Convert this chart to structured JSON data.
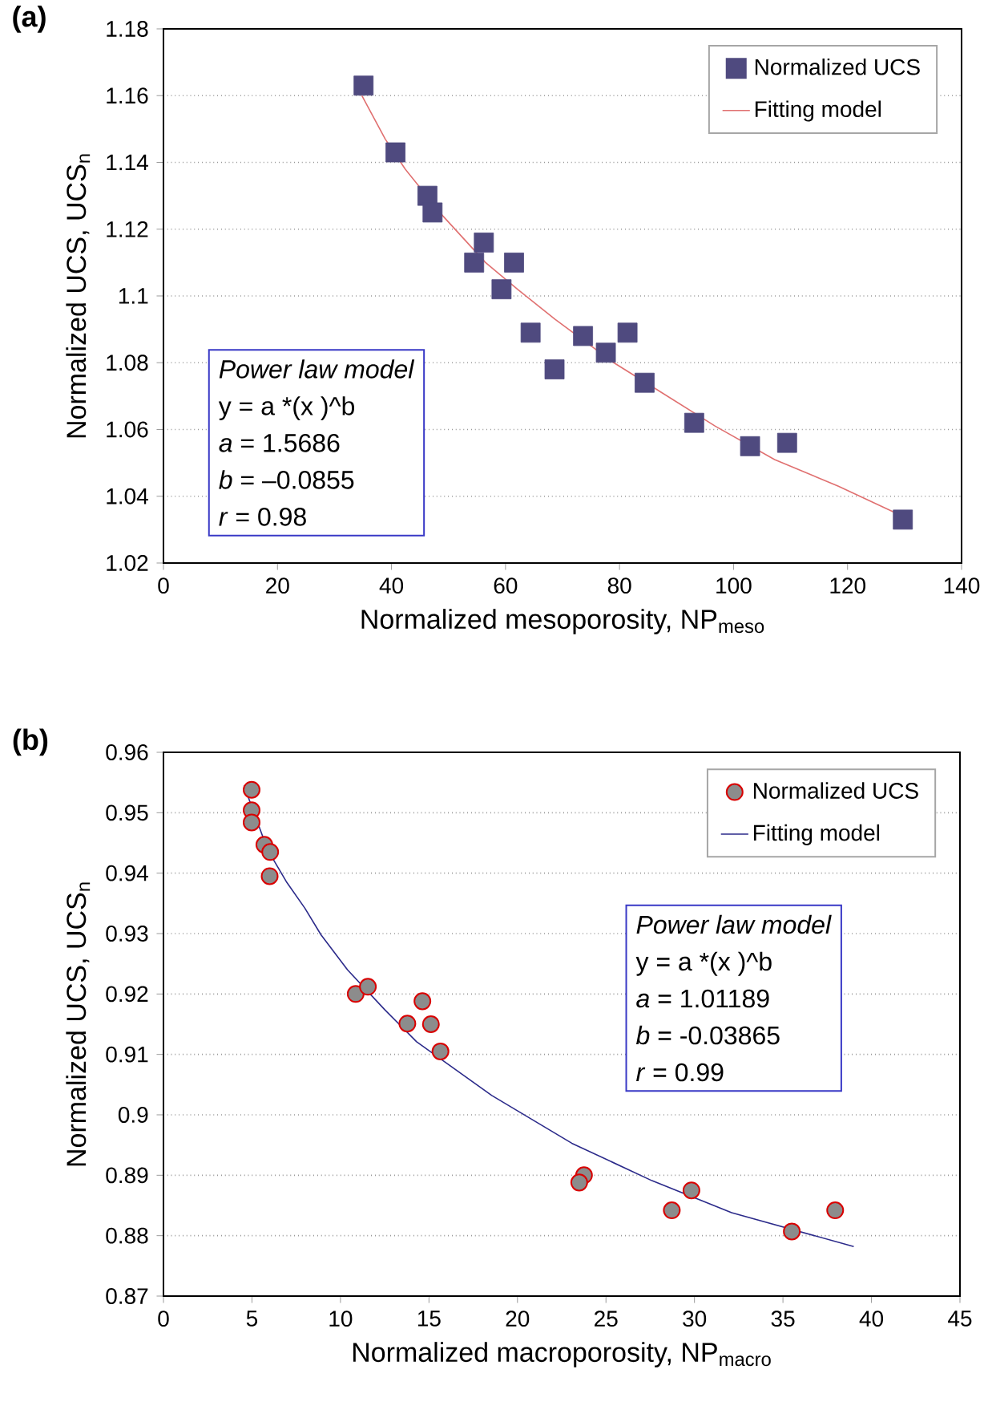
{
  "chart_data": [
    {
      "type": "scatter",
      "title": "(a)",
      "xlabel": "Normalized mesoporosity, NP$_{meso}$",
      "ylabel": "Normalized UCS, UCS$_{n}$",
      "xlim": [
        0,
        140
      ],
      "xticks": [
        0,
        20,
        40,
        60,
        80,
        100,
        120,
        140
      ],
      "ylim": [
        1.02,
        1.18
      ],
      "yticks": [
        1.02,
        1.04,
        1.06,
        1.08,
        1.1,
        1.12,
        1.14,
        1.16,
        1.18
      ],
      "grid": "y",
      "legend": "top right",
      "annotations": [
        "*Power law model*",
        "y = a *(x )^b",
        "*a* = 1.5686",
        "*b* = –0.0855",
        "*r* = 0.98"
      ],
      "series": [
        {
          "name": "Normalized UCS",
          "marker": "square",
          "color": "#4f4a7f",
          "x": [
            35.1,
            40.7,
            46.3,
            47.2,
            56.2,
            54.5,
            61.5,
            59.3,
            64.4,
            68.6,
            73.6,
            77.6,
            81.4,
            84.4,
            93.1,
            102.9,
            109.4,
            129.7
          ],
          "values": [
            1.163,
            1.143,
            1.13,
            1.125,
            1.116,
            1.11,
            1.11,
            1.102,
            1.089,
            1.078,
            1.088,
            1.083,
            1.089,
            1.074,
            1.062,
            1.055,
            1.056,
            1.033
          ]
        },
        {
          "name": "Fitting model",
          "type": "line",
          "marker": "none",
          "color": "#e07070",
          "x": [
            34.8,
            38.9,
            42.4,
            49.0,
            56.5,
            62.1,
            68.7,
            79.0,
            86.5,
            96.8,
            107.2,
            118.4,
            129.7
          ],
          "values": [
            1.16,
            1.147,
            1.138,
            1.124,
            1.11,
            1.102,
            1.093,
            1.08,
            1.072,
            1.061,
            1.051,
            1.043,
            1.034
          ]
        }
      ]
    },
    {
      "type": "scatter",
      "title": "(b)",
      "xlabel": "Normalized macroporosity, NP$_{macro}$",
      "ylabel": "Normalized UCS, UCS$_{n}$",
      "xlim": [
        0,
        45
      ],
      "xticks": [
        0,
        5,
        10,
        15,
        20,
        25,
        30,
        35,
        40,
        45
      ],
      "ylim": [
        0.87,
        0.96
      ],
      "yticks": [
        0.87,
        0.88,
        0.89,
        0.9,
        0.91,
        0.92,
        0.93,
        0.94,
        0.95,
        0.96
      ],
      "grid": "y",
      "legend": "top right",
      "annotations": [
        "*Power law model*",
        "y = a *(x )^b",
        "*a* = 1.01189",
        "*b* = -0.03865",
        "*r* = 0.99"
      ],
      "series": [
        {
          "name": "Normalized UCS",
          "marker": "circle",
          "color": "#8c8c8c",
          "x": [
            4.98,
            4.98,
            4.98,
            5.7,
            6.03,
            6.0,
            10.86,
            11.55,
            13.78,
            14.63,
            15.11,
            15.65,
            23.76,
            23.49,
            29.83,
            28.72,
            37.95,
            35.5
          ],
          "values": [
            0.9538,
            0.9504,
            0.9484,
            0.9447,
            0.9435,
            0.9395,
            0.92,
            0.9212,
            0.9151,
            0.9188,
            0.915,
            0.9105,
            0.89,
            0.8888,
            0.8875,
            0.8842,
            0.8842,
            0.8807
          ]
        },
        {
          "name": "Fitting model",
          "type": "line",
          "marker": "none",
          "color": "#2b2a8a",
          "x": [
            4.55,
            5.88,
            6.94,
            7.99,
            8.9,
            10.4,
            12.5,
            14.3,
            18.55,
            23.07,
            27.6,
            32.1,
            39.0
          ],
          "values": [
            0.9545,
            0.9439,
            0.9386,
            0.9342,
            0.9298,
            0.924,
            0.9174,
            0.9121,
            0.9032,
            0.8953,
            0.8891,
            0.8838,
            0.8782
          ]
        }
      ]
    }
  ]
}
